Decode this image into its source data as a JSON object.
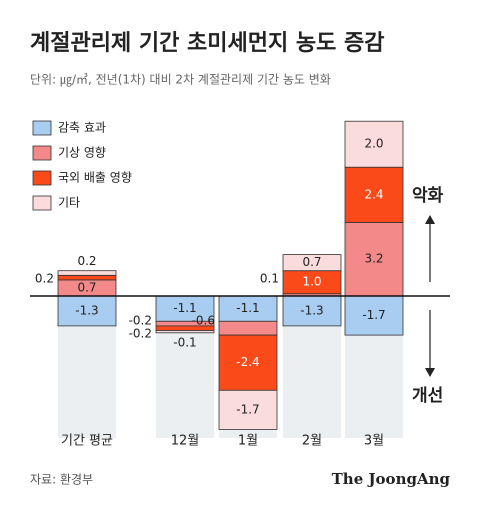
{
  "chart_data": {
    "type": "stacked_bar",
    "title": "계절관리제 기간 초미세먼지 농도 증감",
    "subtitle": "단위: ㎍/㎥, 전년(1차) 대비 2차 계절관리제 기간 농도 변화",
    "categories": [
      "기간 평균",
      "12월",
      "1월",
      "2월",
      "3월"
    ],
    "series": [
      {
        "name": "감축 효과",
        "color": "#a9cdf0",
        "values": [
          -1.3,
          -1.1,
          -1.1,
          -1.3,
          -1.7
        ],
        "value_labels": [
          "-1.3",
          "-1.1",
          "-1.1",
          "-1.3",
          "-1.7"
        ]
      },
      {
        "name": "기상 영향",
        "color": "#f4898a",
        "values": [
          0.7,
          -0.2,
          -0.6,
          0.1,
          3.2
        ],
        "value_labels": [
          "0.7",
          "-0.2",
          "-0.6",
          "0.1",
          "3.2"
        ]
      },
      {
        "name": "국외 배출 영향",
        "color": "#fa4a1a",
        "values": [
          0.2,
          -0.2,
          -2.4,
          1.0,
          2.4
        ],
        "value_labels": [
          "0.2",
          "-0.2",
          "-2.4",
          "1.0",
          "2.4"
        ]
      },
      {
        "name": "기타",
        "color": "#fbdcdc",
        "values": [
          0.2,
          -0.1,
          -1.7,
          0.7,
          2.0
        ],
        "value_labels": [
          "0.2",
          "-0.1",
          "-1.7",
          "0.7",
          "2.0"
        ]
      }
    ],
    "ylim": [
      -6.2,
      7.8
    ],
    "annotations": {
      "up": "악화",
      "down": "개선"
    },
    "source": "자료: 환경부",
    "brand": "The JoongAng"
  }
}
